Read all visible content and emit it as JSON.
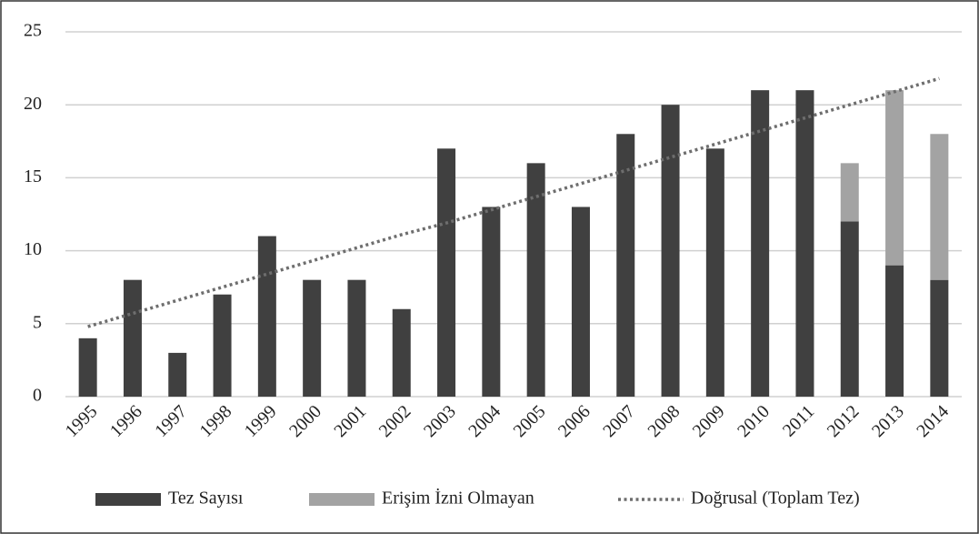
{
  "chart_data": {
    "type": "bar",
    "stacked": true,
    "categories": [
      "1995",
      "1996",
      "1997",
      "1998",
      "1999",
      "2000",
      "2001",
      "2002",
      "2003",
      "2004",
      "2005",
      "2006",
      "2007",
      "2008",
      "2009",
      "2010",
      "2011",
      "2012",
      "2013",
      "2014"
    ],
    "series": [
      {
        "name": "Tez Sayısı",
        "color": "#404040",
        "values": [
          4,
          8,
          3,
          7,
          11,
          8,
          8,
          6,
          17,
          13,
          16,
          13,
          18,
          20,
          17,
          21,
          21,
          12,
          9,
          8
        ]
      },
      {
        "name": "Erişim İzni Olmayan",
        "color": "#a3a3a3",
        "values": [
          0,
          0,
          0,
          0,
          0,
          0,
          0,
          0,
          0,
          0,
          0,
          0,
          0,
          0,
          0,
          0,
          0,
          4,
          12,
          10
        ]
      },
      {
        "name": "Doğrusal (Toplam Tez)",
        "color": "#6e6e6e",
        "type": "line",
        "dashed": true,
        "values": [
          4.8,
          5.7,
          6.6,
          7.5,
          8.4,
          9.3,
          10.2,
          11.1,
          11.9,
          12.8,
          13.7,
          14.6,
          15.5,
          16.4,
          17.3,
          18.2,
          19.1,
          20.0,
          20.9,
          21.8
        ]
      }
    ],
    "ylim": [
      0,
      25
    ],
    "yticks": [
      0,
      5,
      10,
      15,
      20,
      25
    ],
    "grid": true,
    "legend": "bottom"
  }
}
